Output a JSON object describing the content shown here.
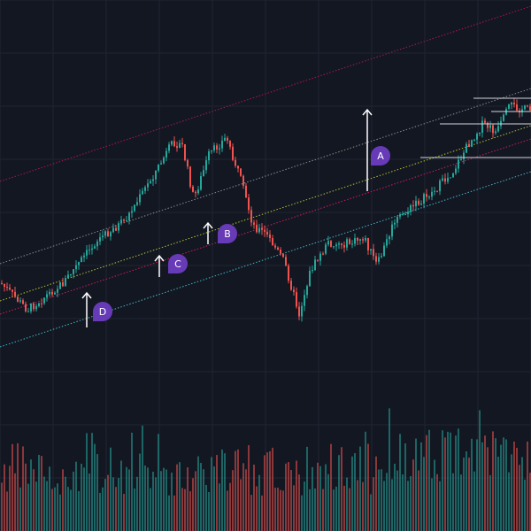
{
  "colors": {
    "background": "#131722",
    "grid": "#1f2433",
    "up": "#26a69a",
    "down": "#ef5350",
    "arrow": "#ffffff",
    "badge": "#673ab7",
    "badge_text": "#ffffff",
    "level_line": "#d1d4dc",
    "channel_lines": [
      "#c2185b",
      "#9e9e9e",
      "#cddc39",
      "#e91e63",
      "#4dd0e1"
    ]
  },
  "chart_data": {
    "type": "candlestick",
    "grid": true,
    "channel": {
      "lines": [
        {
          "name": "upper",
          "color_key": 0
        },
        {
          "name": "upper-mid",
          "color_key": 1
        },
        {
          "name": "mid",
          "color_key": 2
        },
        {
          "name": "lower-mid",
          "color_key": 3
        },
        {
          "name": "lower",
          "color_key": 4
        }
      ]
    },
    "annotations": [
      {
        "label": "A"
      },
      {
        "label": "B"
      },
      {
        "label": "C"
      },
      {
        "label": "D"
      }
    ],
    "horizontal_levels": 4
  }
}
